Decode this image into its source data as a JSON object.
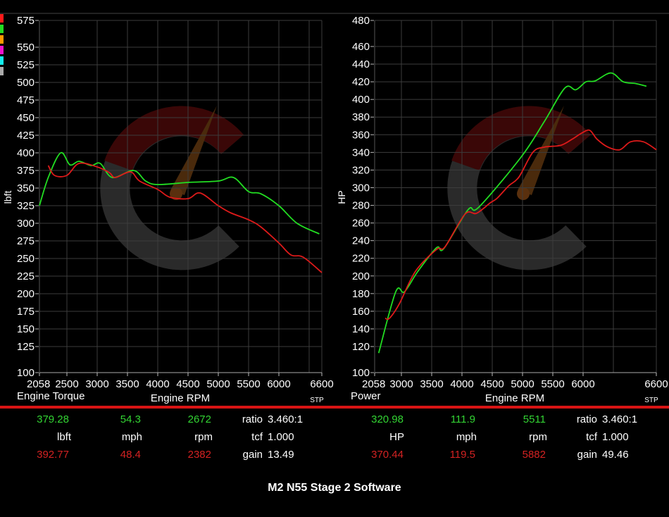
{
  "legend_swatches": [
    "#ff1a1a",
    "#22dd22",
    "#ff9900",
    "#ee11cc",
    "#11eeee",
    "#aaaaaa"
  ],
  "series_colors": {
    "run_a": "#22dd22",
    "run_b": "#dd1a1a"
  },
  "chart_data": [
    {
      "type": "line",
      "title": "Engine Torque",
      "xlabel": "Engine RPM",
      "ylabel": "lbft",
      "corner_label": "STP",
      "xlim": [
        2058,
        6600
      ],
      "ylim": [
        100,
        575
      ],
      "x_ticks": [
        "2058",
        "2500",
        "3000",
        "3500",
        "4000",
        "4500",
        "5000",
        "5500",
        "6000",
        "6600"
      ],
      "y_ticks": [
        "575",
        "550",
        "525",
        "500",
        "475",
        "450",
        "425",
        "400",
        "375",
        "350",
        "325",
        "300",
        "275",
        "250",
        "225",
        "200",
        "175",
        "150",
        "125",
        "100"
      ],
      "grid": true,
      "series": [
        {
          "color": "#22dd22",
          "x": [
            2058,
            2200,
            2400,
            2550,
            2700,
            2900,
            3050,
            3250,
            3600,
            3800,
            4000,
            4500,
            5000,
            5250,
            5500,
            5700,
            6000,
            6300,
            6580
          ],
          "y": [
            325,
            365,
            400,
            383,
            388,
            382,
            385,
            365,
            375,
            360,
            355,
            358,
            360,
            365,
            345,
            342,
            325,
            300,
            285
          ]
        },
        {
          "color": "#dd1a1a",
          "x": [
            2200,
            2300,
            2500,
            2700,
            3000,
            3200,
            3300,
            3550,
            3700,
            4000,
            4200,
            4500,
            4700,
            5000,
            5200,
            5500,
            5700,
            6000,
            6200,
            6400,
            6600
          ],
          "y": [
            382,
            368,
            368,
            385,
            380,
            372,
            365,
            373,
            360,
            348,
            337,
            335,
            343,
            325,
            315,
            305,
            295,
            272,
            255,
            252,
            230
          ]
        }
      ]
    },
    {
      "type": "line",
      "title": "Power",
      "xlabel": "Engine RPM",
      "ylabel": "HP",
      "corner_label": "STP",
      "xlim": [
        2058,
        6600
      ],
      "ylim": [
        100,
        480
      ],
      "x_ticks": [
        "2058",
        "3000",
        "3500",
        "4000",
        "4500",
        "5000",
        "5500",
        "6000",
        "6600"
      ],
      "y_ticks": [
        "480",
        "460",
        "440",
        "420",
        "400",
        "380",
        "360",
        "340",
        "320",
        "300",
        "280",
        "260",
        "240",
        "220",
        "200",
        "180",
        "160",
        "140",
        "120",
        "100"
      ],
      "grid": true,
      "series": [
        {
          "color": "#22dd22",
          "x": [
            2200,
            2800,
            3050,
            3270,
            3580,
            3700,
            4100,
            4280,
            4980,
            5360,
            5700,
            5880,
            6050,
            6200,
            6460,
            6523,
            6552,
            6577
          ],
          "y": [
            115,
            182,
            182,
            205,
            232,
            231,
            275,
            278,
            335,
            375,
            413,
            411,
            420,
            421,
            430,
            420,
            418,
            415
          ]
        },
        {
          "color": "#dd1a1a",
          "x": [
            2430,
            2580,
            2920,
            3230,
            3580,
            3720,
            4050,
            4240,
            4470,
            4580,
            4770,
            4940,
            5170,
            5360,
            5630,
            5820,
            5980,
            6110,
            6230,
            6410,
            6515,
            6540,
            6570,
            6600
          ],
          "y": [
            152,
            152,
            168,
            205,
            230,
            233,
            270,
            271,
            283,
            288,
            302,
            312,
            340,
            346,
            348,
            355,
            362,
            365,
            355,
            346,
            343,
            352,
            352,
            343
          ]
        }
      ]
    }
  ],
  "stats": {
    "torque": {
      "run_a": {
        "value": "379.28",
        "mph": "54.3",
        "rpm": "2672"
      },
      "units": {
        "value": "lbft",
        "mph": "mph",
        "rpm": "rpm"
      },
      "run_b": {
        "value": "392.77",
        "mph": "48.4",
        "rpm": "2382"
      },
      "ratio_label": "ratio",
      "ratio": "3.460:1",
      "tcf_label": "tcf",
      "tcf": "1.000",
      "gain_label": "gain",
      "gain": "13.49"
    },
    "power": {
      "run_a": {
        "value": "320.98",
        "mph": "111.9",
        "rpm": "5511"
      },
      "units": {
        "value": "HP",
        "mph": "mph",
        "rpm": "rpm"
      },
      "run_b": {
        "value": "370.44",
        "mph": "119.5",
        "rpm": "5882"
      },
      "ratio_label": "ratio",
      "ratio": "3.460:1",
      "tcf_label": "tcf",
      "tcf": "1.000",
      "gain_label": "gain",
      "gain": "49.46"
    }
  },
  "footer_title": "M2 N55 Stage 2 Software"
}
